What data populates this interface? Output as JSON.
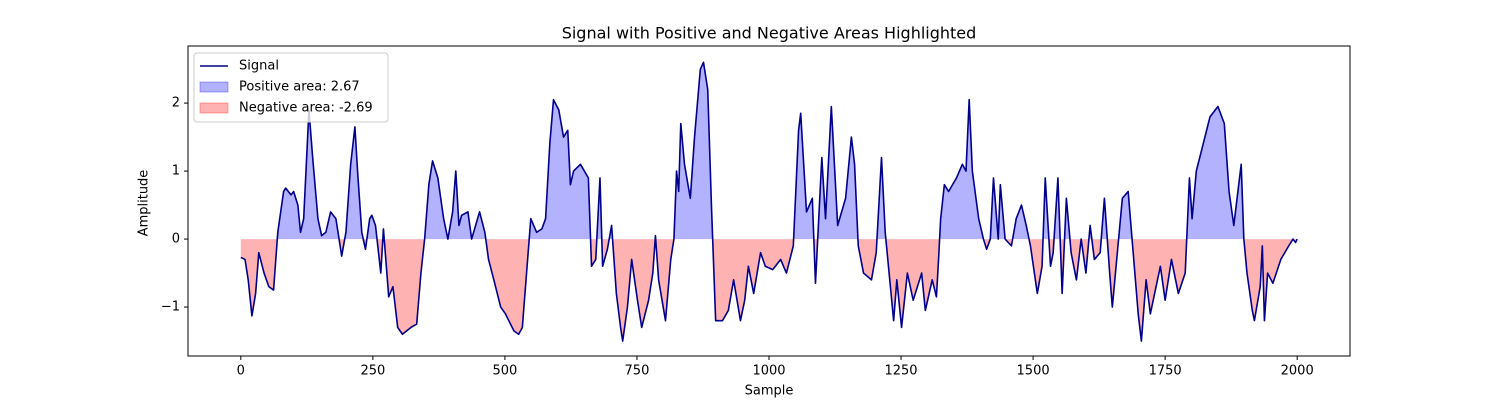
{
  "chart_data": {
    "type": "line",
    "title": "Signal with Positive and Negative Areas Highlighted",
    "x_label": "Sample",
    "y_label": "Amplitude",
    "x": [
      0,
      8,
      14,
      21,
      28,
      34,
      44,
      53,
      62,
      70,
      81,
      85,
      95,
      100,
      108,
      113,
      119,
      129,
      136,
      146,
      153,
      161,
      170,
      180,
      191,
      199,
      208,
      216,
      221,
      229,
      236,
      244,
      248,
      255,
      265,
      270,
      280,
      288,
      297,
      306,
      322,
      333,
      341,
      348,
      356,
      363,
      373,
      384,
      392,
      401,
      407,
      413,
      418,
      430,
      437,
      452,
      462,
      469,
      479,
      492,
      501,
      517,
      526,
      533,
      541,
      549,
      560,
      570,
      577,
      585,
      592,
      602,
      611,
      619,
      624,
      630,
      643,
      658,
      664,
      672,
      680,
      685,
      694,
      702,
      711,
      719,
      723,
      732,
      740,
      751,
      759,
      772,
      780,
      785,
      791,
      804,
      814,
      820,
      825,
      829,
      833,
      840,
      851,
      859,
      870,
      876,
      884,
      891,
      899,
      912,
      923,
      933,
      946,
      954,
      961,
      971,
      984,
      993,
      1007,
      1022,
      1033,
      1046,
      1056,
      1060,
      1071,
      1082,
      1088,
      1100,
      1107,
      1118,
      1130,
      1145,
      1156,
      1162,
      1169,
      1179,
      1194,
      1203,
      1213,
      1220,
      1236,
      1242,
      1251,
      1262,
      1273,
      1289,
      1296,
      1309,
      1317,
      1321,
      1325,
      1332,
      1340,
      1355,
      1366,
      1373,
      1379,
      1385,
      1397,
      1406,
      1412,
      1419,
      1425,
      1434,
      1438,
      1447,
      1459,
      1468,
      1478,
      1487,
      1495,
      1508,
      1517,
      1523,
      1533,
      1538,
      1547,
      1555,
      1563,
      1572,
      1582,
      1591,
      1600,
      1608,
      1616,
      1627,
      1635,
      1645,
      1650,
      1669,
      1680,
      1699,
      1705,
      1714,
      1722,
      1741,
      1750,
      1762,
      1775,
      1788,
      1796,
      1801,
      1809,
      1822,
      1835,
      1850,
      1862,
      1871,
      1880,
      1894,
      1899,
      1905,
      1915,
      1919,
      1930,
      1934,
      1938,
      1944,
      1954,
      1969,
      1984,
      1992,
      1997,
      2000
    ],
    "series": [
      {
        "name": "Signal",
        "color": "#00008b",
        "values": [
          -0.27,
          -0.3,
          -0.6,
          -1.13,
          -0.8,
          -0.2,
          -0.5,
          -0.7,
          -0.75,
          0.1,
          0.7,
          0.75,
          0.65,
          0.7,
          0.5,
          0.1,
          0.3,
          1.9,
          1.2,
          0.3,
          0.05,
          0.1,
          0.4,
          0.3,
          -0.25,
          0.1,
          1.1,
          1.65,
          1.0,
          0.1,
          -0.15,
          0.3,
          0.35,
          0.2,
          -0.5,
          0.15,
          -0.85,
          -0.7,
          -1.3,
          -1.4,
          -1.3,
          -1.25,
          -0.5,
          0.0,
          0.8,
          1.15,
          0.9,
          0.3,
          0.0,
          0.4,
          1.0,
          0.2,
          0.35,
          0.4,
          0.0,
          0.4,
          0.1,
          -0.3,
          -0.6,
          -1.0,
          -1.1,
          -1.35,
          -1.4,
          -1.3,
          -0.5,
          0.3,
          0.1,
          0.15,
          0.3,
          1.4,
          2.05,
          1.9,
          1.5,
          1.6,
          0.8,
          1.0,
          1.1,
          0.9,
          -0.4,
          -0.3,
          0.9,
          -0.4,
          -0.15,
          0.2,
          -0.8,
          -1.3,
          -1.5,
          -1.0,
          -0.3,
          -0.9,
          -1.3,
          -0.9,
          -0.5,
          0.05,
          -0.6,
          -1.2,
          -0.3,
          0.0,
          1.0,
          0.7,
          1.7,
          1.1,
          0.6,
          1.5,
          2.5,
          2.6,
          2.2,
          0.5,
          -1.2,
          -1.2,
          -1.05,
          -0.6,
          -1.2,
          -0.9,
          -0.4,
          -0.8,
          -0.2,
          -0.4,
          -0.45,
          -0.3,
          -0.5,
          -0.1,
          1.6,
          1.85,
          0.4,
          0.6,
          -0.65,
          1.2,
          0.3,
          1.95,
          0.2,
          0.6,
          1.5,
          1.1,
          -0.1,
          -0.5,
          -0.6,
          -0.2,
          1.2,
          0.1,
          -1.2,
          -0.6,
          -1.3,
          -0.5,
          -0.9,
          -0.5,
          -1.05,
          -0.6,
          -0.85,
          -0.3,
          0.3,
          0.8,
          0.7,
          0.9,
          1.1,
          1.0,
          2.05,
          1.0,
          0.3,
          0.0,
          -0.15,
          0.0,
          0.9,
          0.0,
          0.8,
          0.0,
          -0.1,
          0.3,
          0.5,
          0.2,
          -0.1,
          -0.8,
          -0.4,
          0.9,
          -0.4,
          -0.2,
          0.9,
          -0.8,
          0.6,
          -0.2,
          -0.6,
          0.0,
          -0.5,
          0.2,
          -0.3,
          -0.2,
          0.6,
          -0.5,
          -1.0,
          0.6,
          0.7,
          -1.1,
          -1.5,
          -0.6,
          -1.1,
          -0.4,
          -0.9,
          -0.3,
          -0.8,
          -0.5,
          0.9,
          0.3,
          1.0,
          1.4,
          1.8,
          1.95,
          1.7,
          0.7,
          0.2,
          1.1,
          0.0,
          -0.5,
          -1.05,
          -1.2,
          -0.7,
          -0.1,
          -1.2,
          -0.5,
          -0.65,
          -0.3,
          -0.1,
          0.0,
          -0.05,
          0.0
        ]
      }
    ],
    "positive_fill": {
      "name": "Positive area: 2.67",
      "color": "#0000ff"
    },
    "negative_fill": {
      "name": "Negative area: -2.69",
      "color": "#ff0000"
    },
    "xlim": [
      -100,
      2100
    ],
    "xticks": [
      0,
      250,
      500,
      750,
      1000,
      1250,
      1500,
      1750,
      2000
    ],
    "ylim": [
      -1.72,
      2.84
    ],
    "yticks": [
      {
        "value": -1,
        "label": "−1"
      },
      0,
      1,
      2
    ],
    "legend": "upper-left"
  }
}
